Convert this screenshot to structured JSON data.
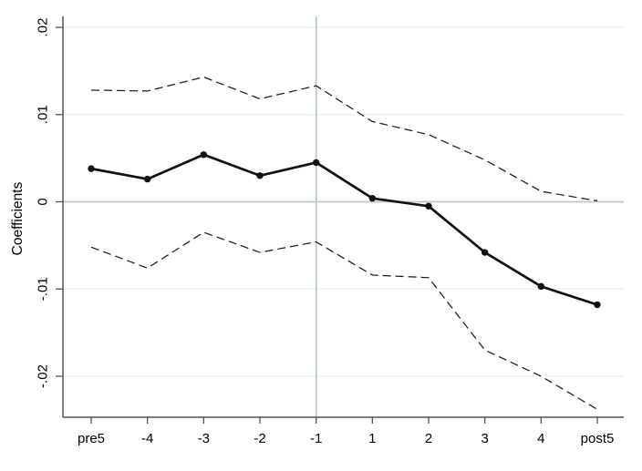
{
  "figure": {
    "background_color": "#ffffff"
  },
  "chart_data": {
    "type": "line",
    "title": "",
    "xlabel": "",
    "ylabel": "Coefficients",
    "legend": "none",
    "grid": true,
    "categories": [
      "pre5",
      "-4",
      "-3",
      "-2",
      "-1",
      "1",
      "2",
      "3",
      "4",
      "post5"
    ],
    "series": [
      {
        "name": "coefficient",
        "style": "solid",
        "markers": "circle",
        "values": [
          0.0038,
          0.0026,
          0.0054,
          0.003,
          0.0045,
          0.0004,
          -0.0005,
          -0.0058,
          -0.0097,
          -0.0118
        ]
      },
      {
        "name": "upper-95-ci",
        "style": "dashed",
        "markers": "none",
        "values": [
          0.0128,
          0.0127,
          0.0143,
          0.0118,
          0.0133,
          0.0092,
          0.0077,
          0.0048,
          0.0012,
          0.0001
        ]
      },
      {
        "name": "lower-95-ci",
        "style": "dashed",
        "markers": "none",
        "values": [
          -0.0052,
          -0.0076,
          -0.0035,
          -0.0058,
          -0.0046,
          -0.0084,
          -0.0087,
          -0.017,
          -0.02,
          -0.0238
        ]
      }
    ],
    "y_ticks": [
      {
        "value": 0.02,
        "label": ".02"
      },
      {
        "value": 0.01,
        "label": ".01"
      },
      {
        "value": 0,
        "label": "0"
      },
      {
        "value": -0.01,
        "label": "-.01"
      },
      {
        "value": -0.02,
        "label": "-.02"
      }
    ],
    "ylim": [
      -0.0247,
      0.0213
    ],
    "reference_lines": {
      "horizontal_value": 0,
      "vertical_category": "-1"
    },
    "colors": {
      "coefficient_line": "#121212",
      "ci_line": "#1c1c1c",
      "reference_line": "#b7c9c3",
      "gridline": "#e9f2f1",
      "axis": "#555555",
      "tick_text": "#000000"
    }
  }
}
